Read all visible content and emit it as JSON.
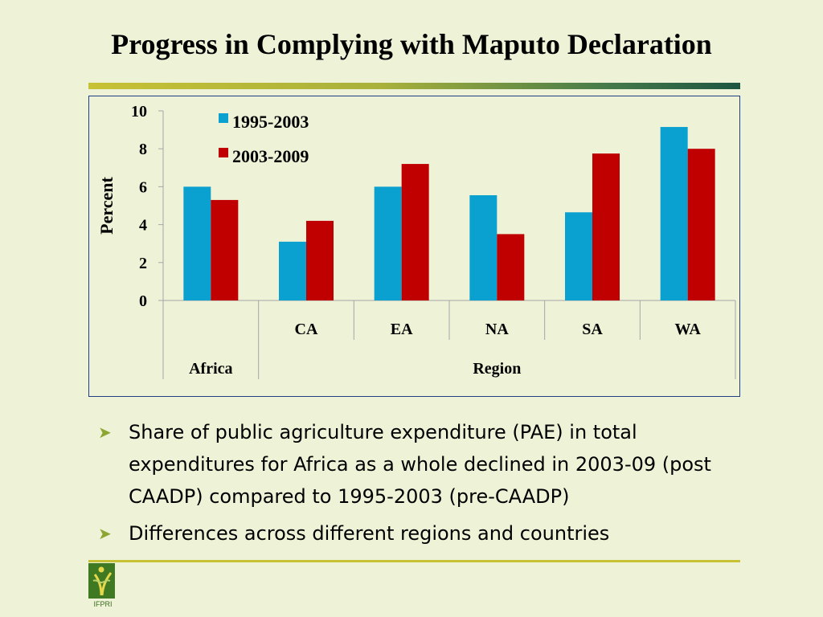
{
  "slide": {
    "title": "Progress in Complying with Maputo Declaration"
  },
  "chart_data": {
    "type": "bar",
    "title": "",
    "ylabel": "Percent",
    "ylim": [
      0,
      10
    ],
    "yticks": [
      "0",
      "2",
      "4",
      "6",
      "8",
      "10"
    ],
    "categories": [
      "",
      "CA",
      "EA",
      "NA",
      "SA",
      "WA"
    ],
    "category_groups": [
      {
        "label": "Africa",
        "span": 1
      },
      {
        "label": "Region",
        "span": 5
      }
    ],
    "series": [
      {
        "name": "1995-2003",
        "color": "#0aa0cf",
        "values": [
          6.0,
          3.1,
          6.0,
          5.55,
          4.65,
          9.15
        ]
      },
      {
        "name": "2003-2009",
        "color": "#c00000",
        "values": [
          5.3,
          4.2,
          7.2,
          3.5,
          7.75,
          8.0
        ]
      }
    ],
    "legend_position": "top-left inside plot",
    "grid": false
  },
  "bullets": [
    "Share of public agriculture expenditure (PAE) in total expenditures for Africa as a whole declined in 2003-09 (post CAADP) compared to 1995-2003 (pre-CAADP)",
    "Differences across different regions and countries"
  ],
  "footer": {
    "logo_text": "IFPRI"
  },
  "colors": {
    "background": "#eef3d8",
    "accent": "#8da531",
    "frame": "#1f3e86"
  }
}
